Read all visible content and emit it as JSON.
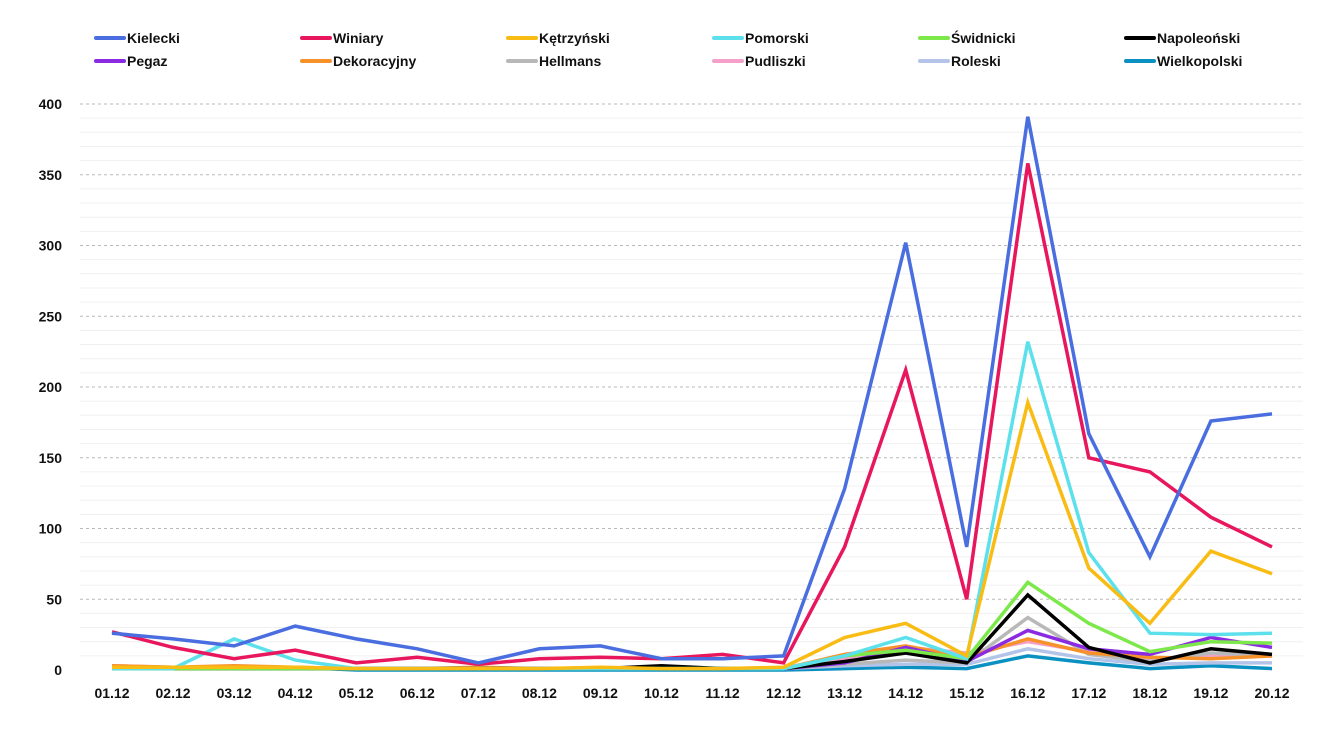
{
  "chart_data": {
    "type": "line",
    "title": "",
    "xlabel": "",
    "ylabel": "",
    "ylim": [
      0,
      400
    ],
    "yticks": [
      0,
      50,
      100,
      150,
      200,
      250,
      300,
      350,
      400
    ],
    "grid": true,
    "legend_position": "top",
    "categories": [
      "01.12",
      "02.12",
      "03.12",
      "04.12",
      "05.12",
      "06.12",
      "07.12",
      "08.12",
      "09.12",
      "10.12",
      "11.12",
      "12.12",
      "13.12",
      "14.12",
      "15.12",
      "16.12",
      "17.12",
      "18.12",
      "19.12",
      "20.12"
    ],
    "series": [
      {
        "name": "Kielecki",
        "color": "#4a6ee0",
        "values": [
          26,
          22,
          17,
          31,
          22,
          15,
          5,
          15,
          17,
          8,
          8,
          10,
          128,
          302,
          87,
          391,
          167,
          80,
          176,
          181
        ]
      },
      {
        "name": "Winiary",
        "color": "#e8175d",
        "values": [
          27,
          16,
          8,
          14,
          5,
          9,
          4,
          8,
          9,
          8,
          11,
          5,
          87,
          212,
          50,
          358,
          150,
          140,
          108,
          87
        ]
      },
      {
        "name": "Kętrzyński",
        "color": "#f9bc15",
        "values": [
          2,
          2,
          2,
          2,
          1,
          1,
          1,
          1,
          2,
          1,
          1,
          2,
          23,
          33,
          10,
          189,
          72,
          33,
          84,
          68
        ]
      },
      {
        "name": "Pomorski",
        "color": "#5ce1ec",
        "values": [
          1,
          1,
          22,
          7,
          1,
          1,
          1,
          1,
          1,
          1,
          1,
          1,
          10,
          23,
          8,
          232,
          83,
          26,
          25,
          26
        ]
      },
      {
        "name": "Świdnicki",
        "color": "#7ce84a",
        "values": [
          1,
          1,
          1,
          1,
          1,
          1,
          1,
          1,
          1,
          1,
          1,
          1,
          10,
          14,
          8,
          62,
          33,
          13,
          20,
          19
        ]
      },
      {
        "name": "Napoleoński",
        "color": "#000000",
        "values": [
          1,
          1,
          1,
          1,
          1,
          1,
          1,
          1,
          1,
          3,
          1,
          1,
          6,
          12,
          5,
          53,
          16,
          5,
          15,
          11
        ]
      },
      {
        "name": "Pegaz",
        "color": "#8a2be2",
        "values": [
          1,
          1,
          1,
          1,
          1,
          1,
          1,
          1,
          1,
          1,
          1,
          1,
          5,
          16,
          6,
          28,
          15,
          11,
          23,
          16
        ]
      },
      {
        "name": "Dekoracyjny",
        "color": "#f7922b",
        "values": [
          3,
          2,
          3,
          2,
          1,
          1,
          2,
          1,
          1,
          1,
          1,
          1,
          11,
          17,
          9,
          22,
          12,
          9,
          8,
          10
        ]
      },
      {
        "name": "Hellmans",
        "color": "#b8b8b8",
        "values": [
          1,
          1,
          1,
          1,
          1,
          1,
          1,
          1,
          1,
          1,
          1,
          1,
          4,
          7,
          5,
          37,
          11,
          6,
          12,
          10
        ]
      },
      {
        "name": "Pudliszki",
        "color": "#f4a0c8",
        "values": [
          3,
          2,
          1,
          1,
          1,
          1,
          1,
          1,
          1,
          1,
          1,
          1,
          8,
          16,
          12,
          20,
          13,
          8,
          10,
          10
        ]
      },
      {
        "name": "Roleski",
        "color": "#b3c4e8",
        "values": [
          1,
          1,
          1,
          1,
          1,
          1,
          1,
          1,
          1,
          1,
          1,
          1,
          3,
          4,
          4,
          15,
          8,
          4,
          5,
          5
        ]
      },
      {
        "name": "Wielkopolski",
        "color": "#0a91c2",
        "values": [
          1,
          1,
          1,
          2,
          0,
          0,
          0,
          0,
          0,
          0,
          0,
          0,
          1,
          2,
          1,
          10,
          5,
          1,
          3,
          1
        ]
      }
    ]
  }
}
